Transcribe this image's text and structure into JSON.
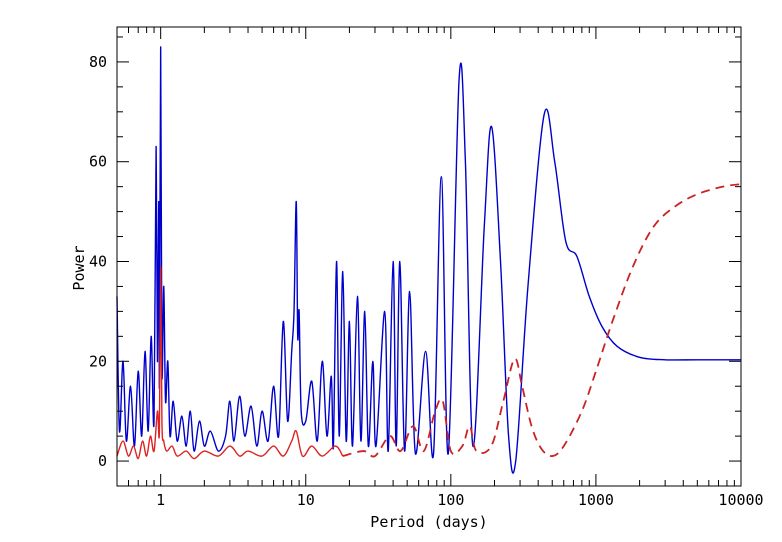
{
  "chart_data": {
    "type": "line",
    "title": "",
    "xlabel": "Period (days)",
    "ylabel": "Power",
    "xscale": "log",
    "xlim": [
      0.5,
      10000
    ],
    "ylim": [
      -5,
      87
    ],
    "xticks": [
      1,
      10,
      100,
      1000,
      10000
    ],
    "xtick_labels": [
      "1",
      "10",
      "100",
      "1000",
      "10000"
    ],
    "yticks": [
      0,
      20,
      40,
      60,
      80
    ],
    "ytick_labels": [
      "0",
      "20",
      "40",
      "60",
      "80"
    ],
    "grid": false,
    "legend": "none",
    "series": [
      {
        "color": "#0000cc",
        "style": "solid",
        "points": [
          [
            0.5,
            33
          ],
          [
            0.52,
            6
          ],
          [
            0.55,
            20
          ],
          [
            0.58,
            4
          ],
          [
            0.62,
            15
          ],
          [
            0.66,
            3
          ],
          [
            0.7,
            18
          ],
          [
            0.74,
            5
          ],
          [
            0.78,
            22
          ],
          [
            0.82,
            6
          ],
          [
            0.86,
            25
          ],
          [
            0.9,
            8
          ],
          [
            0.93,
            63
          ],
          [
            0.95,
            20
          ],
          [
            0.97,
            52
          ],
          [
            0.98,
            15
          ],
          [
            1.0,
            83
          ],
          [
            1.02,
            18
          ],
          [
            1.05,
            35
          ],
          [
            1.08,
            12
          ],
          [
            1.12,
            20
          ],
          [
            1.16,
            5
          ],
          [
            1.22,
            12
          ],
          [
            1.3,
            4
          ],
          [
            1.4,
            9
          ],
          [
            1.5,
            3
          ],
          [
            1.6,
            10
          ],
          [
            1.7,
            2
          ],
          [
            1.85,
            8
          ],
          [
            2.0,
            3
          ],
          [
            2.2,
            6
          ],
          [
            2.5,
            2
          ],
          [
            2.8,
            5
          ],
          [
            3.0,
            12
          ],
          [
            3.2,
            4
          ],
          [
            3.5,
            13
          ],
          [
            3.8,
            5
          ],
          [
            4.2,
            11
          ],
          [
            4.6,
            3
          ],
          [
            5.0,
            10
          ],
          [
            5.5,
            4
          ],
          [
            6.0,
            15
          ],
          [
            6.5,
            5
          ],
          [
            7.0,
            28
          ],
          [
            7.5,
            8
          ],
          [
            8.0,
            22
          ],
          [
            8.3,
            30
          ],
          [
            8.6,
            52
          ],
          [
            8.8,
            25
          ],
          [
            9.0,
            30
          ],
          [
            9.3,
            10
          ],
          [
            10.0,
            8
          ],
          [
            11.0,
            16
          ],
          [
            12.0,
            4
          ],
          [
            13.0,
            20
          ],
          [
            14.0,
            5
          ],
          [
            15.0,
            17
          ],
          [
            15.5,
            3
          ],
          [
            16.3,
            40
          ],
          [
            17.0,
            5
          ],
          [
            18.0,
            38
          ],
          [
            19.0,
            4
          ],
          [
            20.0,
            28
          ],
          [
            21.0,
            3
          ],
          [
            22.7,
            33
          ],
          [
            24.0,
            4
          ],
          [
            25.5,
            30
          ],
          [
            27.0,
            3
          ],
          [
            29.0,
            20
          ],
          [
            30.5,
            3
          ],
          [
            35.0,
            30
          ],
          [
            37.0,
            2
          ],
          [
            40.0,
            40
          ],
          [
            42.0,
            3
          ],
          [
            44.5,
            40
          ],
          [
            48.0,
            2
          ],
          [
            52.0,
            34
          ],
          [
            57.0,
            1.5
          ],
          [
            67.0,
            22
          ],
          [
            76.0,
            1.5
          ],
          [
            86.0,
            57
          ],
          [
            96.0,
            1.5
          ],
          [
            114.0,
            76.5
          ],
          [
            126.0,
            60
          ],
          [
            142.0,
            3
          ],
          [
            170.0,
            47
          ],
          [
            191.0,
            67
          ],
          [
            220.0,
            40
          ],
          [
            250.0,
            5
          ],
          [
            280.0,
            0
          ],
          [
            340.0,
            35
          ],
          [
            440.0,
            69.5
          ],
          [
            520.0,
            60
          ],
          [
            620.0,
            44
          ],
          [
            740.0,
            41
          ],
          [
            900.0,
            33
          ],
          [
            1100.0,
            27
          ],
          [
            1400.0,
            23
          ],
          [
            2000.0,
            20.8
          ],
          [
            3000.0,
            20.3
          ],
          [
            5000.0,
            20.3
          ],
          [
            10000.0,
            20.3
          ]
        ]
      },
      {
        "color": "#dd2222",
        "style": "solid",
        "points": [
          [
            0.5,
            1
          ],
          [
            0.55,
            4
          ],
          [
            0.6,
            1
          ],
          [
            0.65,
            3
          ],
          [
            0.7,
            0.5
          ],
          [
            0.75,
            4
          ],
          [
            0.8,
            1
          ],
          [
            0.85,
            5
          ],
          [
            0.9,
            2
          ],
          [
            0.95,
            10
          ],
          [
            0.98,
            6
          ],
          [
            1.0,
            39
          ],
          [
            1.02,
            8
          ],
          [
            1.05,
            4
          ],
          [
            1.1,
            2
          ],
          [
            1.2,
            3
          ],
          [
            1.3,
            1
          ],
          [
            1.5,
            2
          ],
          [
            1.7,
            0.5
          ],
          [
            2.0,
            2
          ],
          [
            2.5,
            1
          ],
          [
            3.0,
            3
          ],
          [
            3.5,
            1
          ],
          [
            4.0,
            2
          ],
          [
            5.0,
            1
          ],
          [
            6.0,
            3
          ],
          [
            7.0,
            1
          ],
          [
            8.0,
            4
          ],
          [
            8.6,
            6
          ],
          [
            9.5,
            1
          ],
          [
            11.0,
            3
          ],
          [
            13.0,
            1
          ],
          [
            16.0,
            3
          ],
          [
            18.0,
            1
          ]
        ]
      },
      {
        "color": "#cc2222",
        "style": "dashed",
        "points": [
          [
            18.0,
            1
          ],
          [
            25.0,
            2
          ],
          [
            30.0,
            1
          ],
          [
            38.0,
            5
          ],
          [
            45.0,
            2
          ],
          [
            55.0,
            7
          ],
          [
            65.0,
            2
          ],
          [
            78.0,
            10
          ],
          [
            88.0,
            12
          ],
          [
            100.0,
            2
          ],
          [
            120.0,
            3
          ],
          [
            135.0,
            7
          ],
          [
            150.0,
            2
          ],
          [
            190.0,
            3
          ],
          [
            230.0,
            12
          ],
          [
            275.0,
            20.5
          ],
          [
            310.0,
            15
          ],
          [
            360.0,
            7
          ],
          [
            420.0,
            2.5
          ],
          [
            500.0,
            1
          ],
          [
            600.0,
            3
          ],
          [
            800.0,
            10
          ],
          [
            1000.0,
            18
          ],
          [
            1300.0,
            28
          ],
          [
            1800.0,
            39
          ],
          [
            2500.0,
            47
          ],
          [
            3500.0,
            51
          ],
          [
            5000.0,
            53.5
          ],
          [
            7500.0,
            55
          ],
          [
            10000.0,
            55.5
          ]
        ]
      }
    ]
  }
}
